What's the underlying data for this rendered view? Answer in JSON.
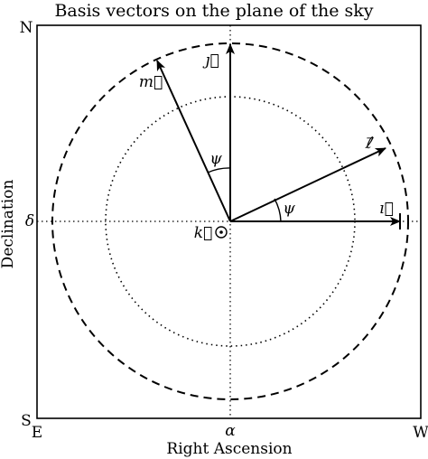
{
  "title": "Basis vectors on the plane of the sky",
  "xlabel": "Right Ascension",
  "ylabel": "Declination",
  "corners": {
    "north": "N",
    "south": "S",
    "east": "E",
    "west": "W"
  },
  "reference_labels": {
    "alpha": "α",
    "delta": "δ"
  },
  "vectors": {
    "i": "ı⃗",
    "j": "ȷ⃗",
    "k": "k⃗",
    "l": "ℓ⃗",
    "m": "m⃗"
  },
  "angles": {
    "psi_upper": "ψ",
    "psi_lower": "ψ"
  }
}
